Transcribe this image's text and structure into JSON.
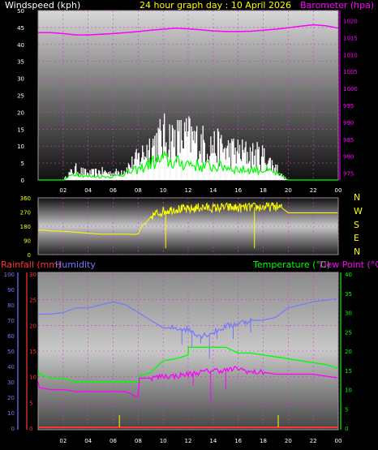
{
  "header": {
    "windspeed_label": "Windspeed (kph)",
    "title": "24 hour graph day : 10 April 2026",
    "barometer_label": "Barometer (hpa)"
  },
  "colors": {
    "background": "#000000",
    "white": "#ffffff",
    "yellow": "#ffff00",
    "magenta": "#ff00ff",
    "green": "#00ff00",
    "blue": "#7777ff",
    "red": "#ff3333",
    "grid": "#d03cd0"
  },
  "chart_data": [
    {
      "type": "line",
      "name": "wind-and-barometer",
      "x_ticks": [
        "02",
        "04",
        "06",
        "08",
        "10",
        "12",
        "14",
        "16",
        "18",
        "20",
        "22",
        "00"
      ],
      "left_axis": {
        "label": "Windspeed (kph)",
        "ticks": [
          0,
          5,
          10,
          15,
          20,
          25,
          30,
          35,
          40,
          45,
          50
        ],
        "ylim": [
          0,
          50
        ]
      },
      "right_axis": {
        "label": "Barometer (hpa)",
        "ticks": [
          975,
          980,
          985,
          990,
          995,
          1000,
          1005,
          1010,
          1015,
          1020
        ],
        "ylim": [
          973,
          1023
        ]
      },
      "series": [
        {
          "axis": "right",
          "color": "#ff00ff",
          "x": [
            0,
            1,
            2,
            3,
            4,
            5,
            6,
            7,
            8,
            9,
            10,
            11,
            12,
            13,
            14,
            15,
            16,
            17,
            18,
            19,
            20,
            21,
            22,
            23,
            24
          ],
          "y": [
            1016.5,
            1016.5,
            1016.2,
            1015.8,
            1015.8,
            1016,
            1016.2,
            1016.5,
            1016.8,
            1017.2,
            1017.5,
            1017.8,
            1017.6,
            1017.3,
            1017,
            1016.8,
            1016.8,
            1016.9,
            1017.2,
            1017.5,
            1017.9,
            1018.4,
            1018.8,
            1018.5,
            1017.8
          ]
        }
      ],
      "wind_envelope": {
        "x": [
          0,
          1,
          2,
          2.5,
          3,
          4,
          5,
          6,
          7,
          8,
          9,
          10,
          11,
          12,
          13,
          14,
          15,
          16,
          17,
          18,
          19,
          19.5,
          20,
          24
        ],
        "gust_max": [
          0,
          0,
          0,
          3,
          5,
          3,
          4,
          3,
          5,
          10,
          16,
          20,
          19,
          20,
          17,
          16,
          14,
          13,
          12,
          11,
          6,
          2,
          0,
          0
        ],
        "avg": [
          0,
          0,
          0,
          1,
          2,
          1,
          1,
          1,
          2,
          3,
          5,
          6,
          5,
          5,
          4,
          4,
          4,
          3,
          3,
          3,
          2,
          1,
          0,
          0
        ]
      }
    },
    {
      "type": "line",
      "name": "wind-direction",
      "x_ticks": [
        "02",
        "04",
        "06",
        "08",
        "10",
        "12",
        "14",
        "16",
        "18",
        "20",
        "22",
        "00"
      ],
      "left_axis": {
        "ticks": [
          0,
          90,
          180,
          270,
          360
        ],
        "ylim": [
          0,
          360
        ]
      },
      "right_axis": {
        "ticks": [
          "N",
          "W",
          "S",
          "E",
          "N"
        ]
      },
      "series": [
        {
          "color": "#ffff00",
          "x": [
            0,
            0.5,
            1,
            2,
            3,
            4,
            5,
            6,
            7,
            7.5,
            8,
            8.3,
            8.6,
            9,
            9.5,
            10,
            11,
            12,
            13,
            14,
            15,
            16,
            17,
            18,
            19,
            19.5,
            20,
            21,
            22,
            23,
            24
          ],
          "y": [
            155,
            155,
            150,
            148,
            142,
            135,
            130,
            130,
            130,
            128,
            130,
            185,
            200,
            240,
            260,
            275,
            290,
            285,
            300,
            295,
            300,
            295,
            300,
            300,
            305,
            295,
            265,
            265,
            265,
            265,
            265
          ]
        }
      ]
    },
    {
      "type": "line",
      "name": "humidity-rain-temperature",
      "x_ticks": [
        "02",
        "04",
        "06",
        "08",
        "10",
        "12",
        "14",
        "16",
        "18",
        "20",
        "22",
        "00"
      ],
      "humidity_axis": {
        "label": "Humidity",
        "ticks": [
          0,
          10,
          20,
          30,
          40,
          50,
          60,
          70,
          80,
          90,
          100
        ],
        "ylim": [
          0,
          100
        ]
      },
      "rainfall_axis": {
        "label": "Rainfall (mm)",
        "ticks": [
          0,
          5,
          10,
          15,
          20,
          25,
          30
        ],
        "ylim": [
          0,
          30
        ]
      },
      "temperature_axis": {
        "label": "Temperature (°C)",
        "ticks": [
          0,
          5,
          10,
          15,
          20,
          25,
          30,
          35,
          40
        ],
        "ylim": [
          0,
          40
        ]
      },
      "dewpoint_label": "Dew Point (°C)",
      "series": [
        {
          "name": "Humidity",
          "color": "#7777ff",
          "x": [
            0,
            1,
            2,
            3,
            4,
            5,
            6,
            7,
            8,
            9,
            10,
            11,
            12,
            13,
            14,
            15,
            16,
            17,
            18,
            19,
            20,
            21,
            22,
            23,
            24
          ],
          "y": [
            74,
            74,
            75,
            78,
            78,
            80,
            82,
            80,
            75,
            70,
            65,
            65,
            64,
            60,
            62,
            66,
            68,
            70,
            70,
            72,
            78,
            80,
            82,
            83,
            84
          ]
        },
        {
          "name": "Temperature (°C)",
          "color": "#00ff00",
          "x": [
            0,
            0.1,
            1,
            2,
            3,
            4,
            5,
            6,
            6.5,
            7,
            8,
            8.1,
            9,
            10,
            11,
            12,
            12.01,
            13,
            14,
            15,
            16,
            17,
            18,
            19,
            20,
            21,
            22,
            23,
            24
          ],
          "y": [
            15,
            14,
            13,
            13,
            12,
            12,
            12,
            12,
            12,
            12,
            12,
            13.5,
            14.5,
            17.5,
            18,
            19,
            21,
            21,
            21,
            21,
            19.5,
            19.5,
            19,
            18.5,
            18,
            17.5,
            17,
            16.5,
            15.5
          ]
        },
        {
          "name": "Dew Point (°C)",
          "color": "#ff00ff",
          "x": [
            0,
            0.1,
            1,
            2,
            3,
            4,
            5,
            6,
            7,
            8,
            8.1,
            9,
            10,
            11,
            12,
            13,
            14,
            15,
            16,
            17,
            18,
            19,
            20,
            21,
            22,
            23,
            24
          ],
          "y": [
            12,
            10.5,
            10,
            10,
            9.5,
            9.5,
            9.5,
            9.5,
            9.5,
            8,
            13,
            13,
            13.5,
            13.5,
            14,
            14.5,
            15,
            15,
            15.5,
            14.5,
            14.5,
            14,
            14,
            14,
            14,
            13.5,
            13
          ]
        },
        {
          "name": "Rainfall (mm)",
          "color": "#ff3333",
          "x": [
            0,
            24
          ],
          "y": [
            0.1,
            0.1
          ]
        }
      ]
    }
  ]
}
